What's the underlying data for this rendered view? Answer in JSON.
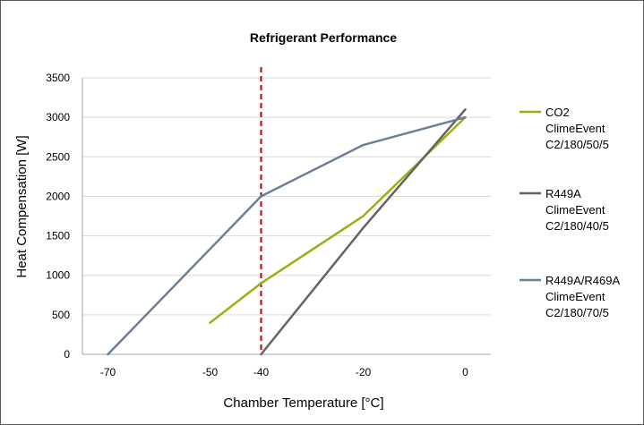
{
  "chart_data": {
    "type": "line",
    "title": "Refrigerant Performance",
    "xlabel": "Chamber Temperature [°C]",
    "ylabel": "Heat Compensation [W]",
    "xlim": [
      -75,
      5
    ],
    "ylim": [
      0,
      3500
    ],
    "x_ticks": [
      -70,
      -50,
      -40,
      -20,
      0
    ],
    "y_ticks": [
      0,
      500,
      1000,
      1500,
      2000,
      2500,
      3000,
      3500
    ],
    "x_tick_labels": [
      "-70",
      "-50",
      "-40",
      "-20",
      "0"
    ],
    "y_tick_labels": [
      "0",
      "500",
      "1000",
      "1500",
      "2000",
      "2500",
      "3000",
      "3500"
    ],
    "grid": "horizontal",
    "legend_position": "right",
    "reference_line": {
      "x": -40,
      "style": "dashed",
      "color": "#C00000"
    },
    "series": [
      {
        "name": "CO2 ClimeEvent C2/180/50/5",
        "legend_lines": [
          "CO2",
          "ClimeEvent",
          "C2/180/50/5"
        ],
        "color": "#9BAE12",
        "x": [
          -50,
          -40,
          -20,
          0
        ],
        "y": [
          400,
          900,
          1750,
          3000
        ]
      },
      {
        "name": "R449A ClimeEvent C2/180/40/5",
        "legend_lines": [
          "R449A",
          "ClimeEvent",
          "C2/180/40/5"
        ],
        "color": "#646464",
        "x": [
          -40,
          -20,
          0
        ],
        "y": [
          0,
          1600,
          3100
        ]
      },
      {
        "name": "R449A/R469A ClimeEvent C2/180/70/5",
        "legend_lines": [
          "R449A/R469A",
          "ClimeEvent",
          "C2/180/70/5"
        ],
        "color": "#6C7F99",
        "x": [
          -70,
          -40,
          -20,
          0
        ],
        "y": [
          0,
          2000,
          2650,
          3000
        ]
      }
    ]
  }
}
